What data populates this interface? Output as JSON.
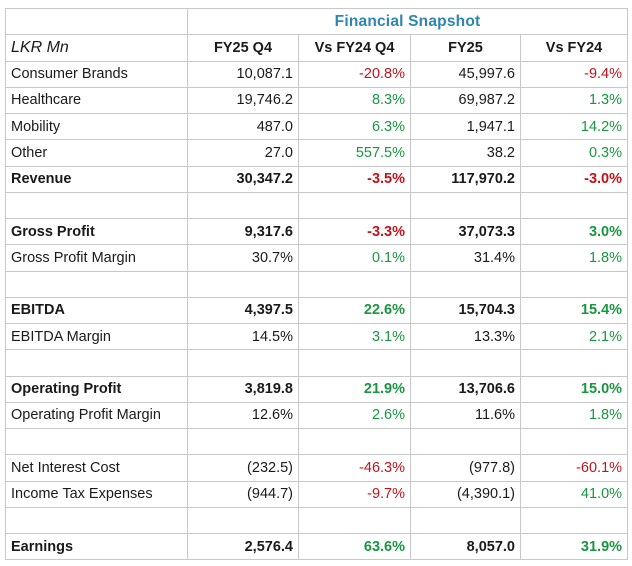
{
  "title": "Financial Snapshot",
  "unit_label": "LKR Mn",
  "columns": [
    "FY25 Q4",
    "Vs FY24 Q4",
    "FY25",
    "Vs FY24"
  ],
  "colors": {
    "negative": "#c0141c",
    "positive": "#1a9641",
    "title": "#2e86b0"
  },
  "rows": [
    {
      "label": "Consumer Brands",
      "bold": false,
      "values": [
        "10,087.1",
        "-20.8%",
        "45,997.6",
        "-9.4%"
      ]
    },
    {
      "label": "Healthcare",
      "bold": false,
      "values": [
        "19,746.2",
        "8.3%",
        "69,987.2",
        "1.3%"
      ]
    },
    {
      "label": "Mobility",
      "bold": false,
      "values": [
        "487.0",
        "6.3%",
        "1,947.1",
        "14.2%"
      ]
    },
    {
      "label": "Other",
      "bold": false,
      "values": [
        "27.0",
        "557.5%",
        "38.2",
        "0.3%"
      ]
    },
    {
      "label": "Revenue",
      "bold": true,
      "values": [
        "30,347.2",
        "-3.5%",
        "117,970.2",
        "-3.0%"
      ]
    },
    {
      "spacer": true
    },
    {
      "label": "Gross Profit",
      "bold": true,
      "values": [
        "9,317.6",
        "-3.3%",
        "37,073.3",
        "3.0%"
      ]
    },
    {
      "label": "Gross Profit Margin",
      "bold": false,
      "values": [
        "30.7%",
        "0.1%",
        "31.4%",
        "1.8%"
      ]
    },
    {
      "spacer": true
    },
    {
      "label": "EBITDA",
      "bold": true,
      "values": [
        "4,397.5",
        "22.6%",
        "15,704.3",
        "15.4%"
      ]
    },
    {
      "label": "EBITDA Margin",
      "bold": false,
      "values": [
        "14.5%",
        "3.1%",
        "13.3%",
        "2.1%"
      ]
    },
    {
      "spacer": true
    },
    {
      "label": "Operating Profit",
      "bold": true,
      "values": [
        "3,819.8",
        "21.9%",
        "13,706.6",
        "15.0%"
      ]
    },
    {
      "label": "Operating Profit Margin",
      "bold": false,
      "values": [
        "12.6%",
        "2.6%",
        "11.6%",
        "1.8%"
      ]
    },
    {
      "spacer": true
    },
    {
      "label": "Net Interest Cost",
      "bold": false,
      "values": [
        "(232.5)",
        "-46.3%",
        "(977.8)",
        "-60.1%"
      ]
    },
    {
      "label": "Income Tax Expenses",
      "bold": false,
      "values": [
        "(944.7)",
        "-9.7%",
        "(4,390.1)",
        "41.0%"
      ]
    },
    {
      "spacer": true
    },
    {
      "label": "Earnings",
      "bold": true,
      "values": [
        "2,576.4",
        "63.6%",
        "8,057.0",
        "31.9%"
      ]
    }
  ]
}
